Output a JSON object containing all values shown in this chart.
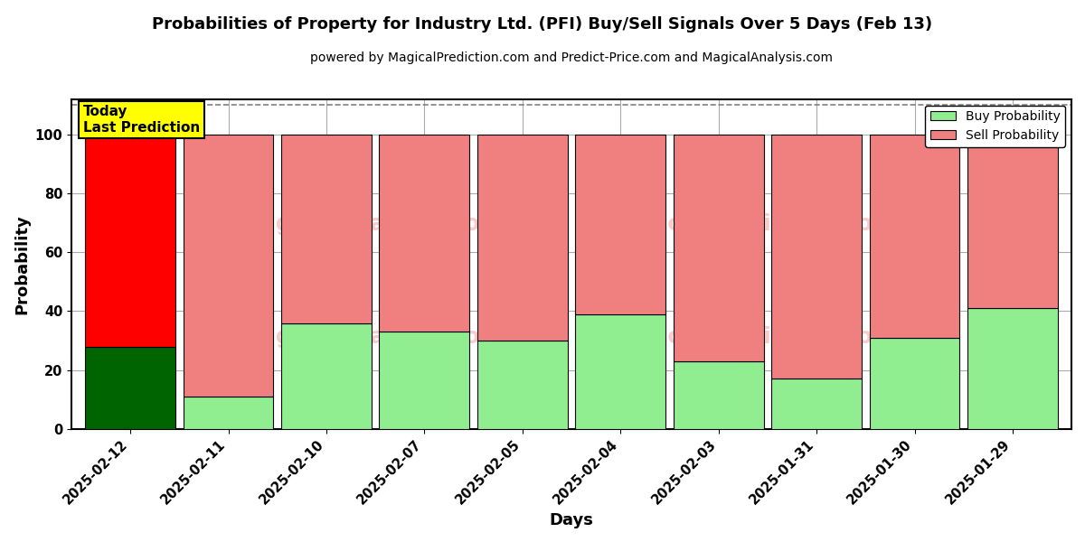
{
  "title": "Probabilities of Property for Industry Ltd. (PFI) Buy/Sell Signals Over 5 Days (Feb 13)",
  "subtitle": "powered by MagicalPrediction.com and Predict-Price.com and MagicalAnalysis.com",
  "xlabel": "Days",
  "ylabel": "Probability",
  "categories": [
    "2025-02-12",
    "2025-02-11",
    "2025-02-10",
    "2025-02-07",
    "2025-02-05",
    "2025-02-04",
    "2025-02-03",
    "2025-01-31",
    "2025-01-30",
    "2025-01-29"
  ],
  "buy_values": [
    28,
    11,
    36,
    33,
    30,
    39,
    23,
    17,
    31,
    41
  ],
  "sell_values": [
    72,
    89,
    64,
    67,
    70,
    61,
    77,
    83,
    69,
    59
  ],
  "buy_color_today": "#006400",
  "sell_color_today": "#FF0000",
  "buy_color_normal": "#90EE90",
  "sell_color_normal": "#F08080",
  "today_annotation_bg": "#FFFF00",
  "today_annotation_text": "Today\nLast Prediction",
  "ylim": [
    0,
    112
  ],
  "yticks": [
    0,
    20,
    40,
    60,
    80,
    100
  ],
  "dashed_line_y": 110,
  "legend_buy_label": "Buy Probability",
  "legend_sell_label": "Sell Probability",
  "background_color": "#ffffff",
  "grid_color": "#aaaaaa",
  "bar_edge_color": "#000000",
  "bar_width": 0.92,
  "watermark_color": "#F08080",
  "watermark_alpha": 0.4
}
